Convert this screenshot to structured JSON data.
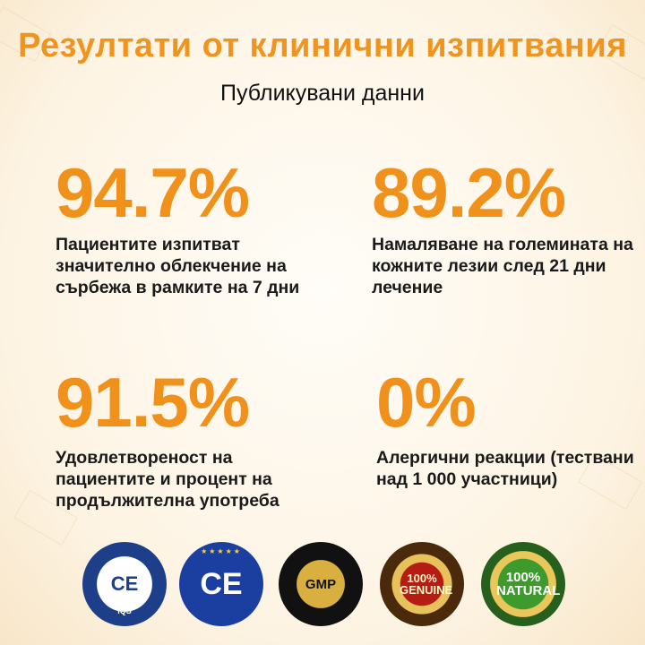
{
  "header": {
    "title": "Резултати от клинични изпитвания",
    "subtitle": "Публикувани данни"
  },
  "stats": [
    {
      "value": "94.7%",
      "description": "Пациентите изпитват значително облекчение на сърбежа в рамките на 7 дни"
    },
    {
      "value": "89.2%",
      "description": "Намаляване на големината на кожните лезии след 21 дни лечение"
    },
    {
      "value": "91.5%",
      "description": "Удовлетвореност на пациентите и процент на продължителна употреба"
    },
    {
      "value": "0%",
      "description": "Алергични реакции (тествани над 1 000 участници)"
    }
  ],
  "badges": {
    "iqs": {
      "mark": "CE",
      "ring_text": "IQS"
    },
    "ce": {
      "mark": "CE"
    },
    "gmp": {
      "mark": "GMP"
    },
    "genuine": {
      "mark": "100% GENUINE"
    },
    "natural": {
      "mark": "100% NATURAL"
    }
  },
  "colors": {
    "accent": "#f0911c",
    "text": "#1a1a1a"
  }
}
